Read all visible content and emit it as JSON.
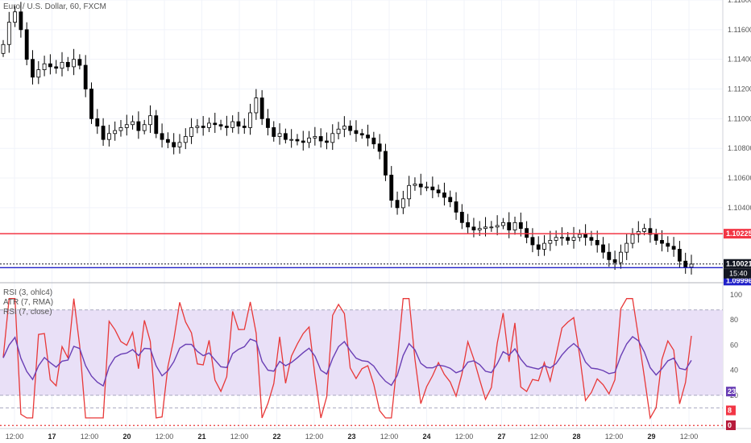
{
  "chart_data": [
    {
      "type": "candlestick",
      "title": "Euro / U.S. Dollar, 60, FXCM",
      "ylim": [
        1.099,
        1.118
      ],
      "price_ticks": [
        "1.11800",
        "1.11600",
        "1.11400",
        "1.11200",
        "1.11000",
        "1.10800",
        "1.10600",
        "1.10400"
      ],
      "x_ticks": [
        "12:00",
        "17",
        "12:00",
        "20",
        "12:00",
        "21",
        "12:00",
        "22",
        "12:00",
        "23",
        "12:00",
        "24",
        "12:00",
        "27",
        "12:00",
        "28",
        "12:00",
        "29",
        "12:00"
      ],
      "horizontal_lines": [
        {
          "price": 1.10225,
          "label": "1.10225",
          "color": "#f23645"
        },
        {
          "price": 1.10021,
          "label": "1.10021",
          "color": "#131722"
        },
        {
          "price": 1.09996,
          "label": "1.09996",
          "color": "#2020c8"
        }
      ],
      "time_label": "15:40",
      "closes_approx": [
        1.115,
        1.1165,
        1.1172,
        1.116,
        1.114,
        1.1128,
        1.1133,
        1.1137,
        1.1135,
        1.1134,
        1.1138,
        1.1135,
        1.114,
        1.1136,
        1.112,
        1.11,
        1.1095,
        1.1086,
        1.109,
        1.1092,
        1.1094,
        1.1096,
        1.1098,
        1.1092,
        1.1096,
        1.1102,
        1.109,
        1.1086,
        1.1084,
        1.1081,
        1.1084,
        1.1088,
        1.1094,
        1.1095,
        1.1094,
        1.1097,
        1.1096,
        1.1095,
        1.1094,
        1.1098,
        1.1095,
        1.1094,
        1.1104,
        1.1114,
        1.11,
        1.1094,
        1.1088,
        1.109,
        1.1086,
        1.1086,
        1.1085,
        1.1084,
        1.1087,
        1.1088,
        1.1085,
        1.1084,
        1.109,
        1.1093,
        1.1095,
        1.1092,
        1.109,
        1.1089,
        1.1087,
        1.1083,
        1.1078,
        1.1062,
        1.1045,
        1.104,
        1.1046,
        1.1055,
        1.1056,
        1.1054,
        1.1054,
        1.1052,
        1.105,
        1.1047,
        1.1044,
        1.1037,
        1.103,
        1.1027,
        1.1025,
        1.1026,
        1.1027,
        1.1027,
        1.1028,
        1.103,
        1.1025,
        1.103,
        1.1026,
        1.102,
        1.1015,
        1.1012,
        1.1016,
        1.1018,
        1.102,
        1.102,
        1.1018,
        1.102,
        1.1022,
        1.102,
        1.1018,
        1.1015,
        1.101,
        1.1005,
        1.1003,
        1.101,
        1.1016,
        1.1022,
        1.1024,
        1.1026,
        1.1022,
        1.1018,
        1.1016,
        1.1014,
        1.1012,
        1.1004,
        1.1,
        1.1002
      ]
    },
    {
      "type": "line",
      "series": [
        {
          "name": "RSI (3, ohlc4)",
          "color": "#e83838"
        },
        {
          "name": "ATR (7, RMA)",
          "color": "#ff9800"
        },
        {
          "name": "RSI (7, close)",
          "color": "#6a3fb5"
        }
      ],
      "y_ticks": [
        "100",
        "80",
        "60",
        "40",
        "20"
      ],
      "value_badges": [
        {
          "label": "23",
          "color": "#6a3fb5"
        },
        {
          "label": "8",
          "color": "#f23645"
        },
        {
          "label": "0",
          "color": "#b71c3c"
        }
      ]
    }
  ]
}
